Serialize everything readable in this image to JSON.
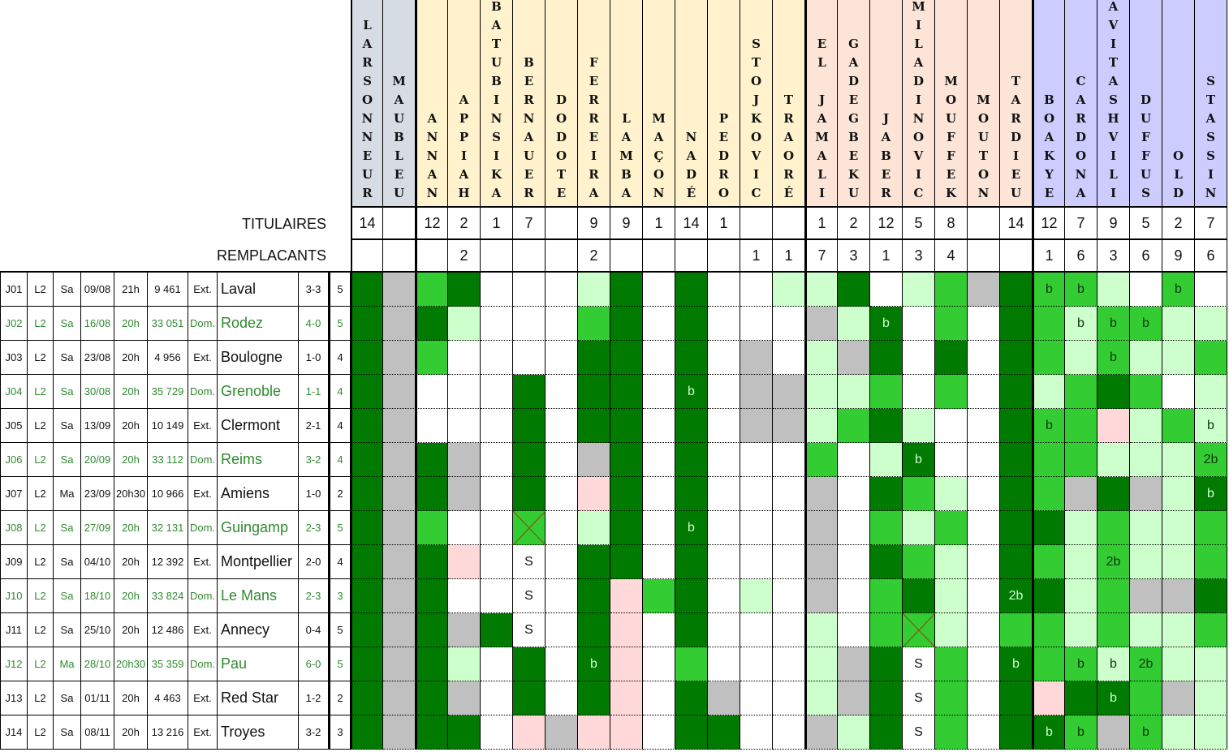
{
  "colors": {
    "D": "#007a00",
    "M": "#33cc33",
    "L": "#ccffcc",
    "W": "#ffffff",
    "G": "#c0c0c0",
    "P": "#ffd9d9",
    "X": "#33cc33"
  },
  "group_colors": [
    "#d6dce4",
    "#fff2cc",
    "#fce4d6",
    "#ccccff"
  ],
  "labels": {
    "titulaires": "TITULAIRES",
    "remplacants": "REMPLACANTS"
  },
  "players": [
    {
      "name": "LARSONNEUR",
      "group": 0,
      "tit": "14",
      "rem": ""
    },
    {
      "name": "MAUBLEU",
      "group": 0,
      "tit": "",
      "rem": ""
    },
    {
      "name": "ANNAN",
      "group": 1,
      "tit": "12",
      "rem": ""
    },
    {
      "name": "APPIAH",
      "group": 1,
      "tit": "2",
      "rem": "2"
    },
    {
      "name": "BATUBINSIKA",
      "group": 1,
      "tit": "1",
      "rem": ""
    },
    {
      "name": "BERNAUER",
      "group": 1,
      "tit": "7",
      "rem": ""
    },
    {
      "name": "DODOTE",
      "group": 1,
      "tit": "",
      "rem": ""
    },
    {
      "name": "FERREIRA",
      "group": 1,
      "tit": "9",
      "rem": "2"
    },
    {
      "name": "LAMBA",
      "group": 1,
      "tit": "9",
      "rem": ""
    },
    {
      "name": "MAÇON",
      "group": 1,
      "tit": "1",
      "rem": ""
    },
    {
      "name": "NADÉ",
      "group": 1,
      "tit": "14",
      "rem": ""
    },
    {
      "name": "PEDRO",
      "group": 1,
      "tit": "1",
      "rem": ""
    },
    {
      "name": "STOJKOVIC",
      "group": 1,
      "tit": "",
      "rem": "1"
    },
    {
      "name": "TRAORÉ",
      "group": 1,
      "tit": "",
      "rem": "1"
    },
    {
      "name": "EL JAMALI",
      "group": 2,
      "tit": "1",
      "rem": "7"
    },
    {
      "name": "GADEGBEKU",
      "group": 2,
      "tit": "2",
      "rem": "3"
    },
    {
      "name": "JABER",
      "group": 2,
      "tit": "12",
      "rem": "1"
    },
    {
      "name": "MILADINOVIC",
      "group": 2,
      "tit": "5",
      "rem": "3"
    },
    {
      "name": "MOUFFEK",
      "group": 2,
      "tit": "8",
      "rem": "4"
    },
    {
      "name": "MOUTON",
      "group": 2,
      "tit": "",
      "rem": ""
    },
    {
      "name": "TARDIEU",
      "group": 2,
      "tit": "14",
      "rem": ""
    },
    {
      "name": "BOAKYE",
      "group": 3,
      "tit": "12",
      "rem": "1"
    },
    {
      "name": "CARDONA",
      "group": 3,
      "tit": "7",
      "rem": "6"
    },
    {
      "name": "DAVITASHVILI",
      "group": 3,
      "tit": "9",
      "rem": "3"
    },
    {
      "name": "DUFFUS",
      "group": 3,
      "tit": "5",
      "rem": "6"
    },
    {
      "name": "OLD",
      "group": 3,
      "tit": "2",
      "rem": "9"
    },
    {
      "name": "STASSIN",
      "group": 3,
      "tit": "7",
      "rem": "6"
    }
  ],
  "matches": [
    {
      "j": "J01",
      "comp": "L2",
      "day": "Sa",
      "date": "09/08",
      "time": "21h",
      "att": "9 461",
      "venue": "Ext.",
      "opp": "Laval",
      "score": "3-3",
      "n": "5",
      "home": false,
      "cells": [
        "D",
        "G",
        "M",
        "D",
        "W",
        "W",
        "W",
        "L",
        "D",
        "W",
        "D",
        "W",
        "W",
        "L",
        "L",
        "D",
        "W",
        "L",
        "M",
        "G",
        "D",
        "M:b",
        "M:b",
        "L",
        "W",
        "M:b",
        "W"
      ]
    },
    {
      "j": "J02",
      "comp": "L2",
      "day": "Sa",
      "date": "16/08",
      "time": "20h",
      "att": "33 051",
      "venue": "Dom.",
      "opp": "Rodez",
      "score": "4-0",
      "n": "5",
      "home": true,
      "cells": [
        "D",
        "G",
        "D",
        "L",
        "W",
        "W",
        "W",
        "M",
        "D",
        "W",
        "D",
        "W",
        "W",
        "W",
        "G",
        "L",
        "D:b",
        "W",
        "M",
        "W",
        "D",
        "M",
        "L:b",
        "M:b",
        "M:b",
        "L",
        "L"
      ]
    },
    {
      "j": "J03",
      "comp": "L2",
      "day": "Sa",
      "date": "23/08",
      "time": "20h",
      "att": "4 956",
      "venue": "Ext.",
      "opp": "Boulogne",
      "score": "1-0",
      "n": "4",
      "home": false,
      "cells": [
        "D",
        "G",
        "M",
        "W",
        "W",
        "W",
        "W",
        "D",
        "D",
        "W",
        "D",
        "W",
        "G",
        "W",
        "L",
        "G",
        "D",
        "W",
        "D",
        "W",
        "D",
        "M",
        "L",
        "M:b",
        "L",
        "L",
        "M"
      ]
    },
    {
      "j": "J04",
      "comp": "L2",
      "day": "Sa",
      "date": "30/08",
      "time": "20h",
      "att": "35 729",
      "venue": "Dom.",
      "opp": "Grenoble",
      "score": "1-1",
      "n": "4",
      "home": true,
      "cells": [
        "D",
        "G",
        "W",
        "W",
        "W",
        "D",
        "W",
        "D",
        "D",
        "W",
        "D:b",
        "W",
        "G",
        "G",
        "L",
        "L",
        "M",
        "W",
        "M",
        "W",
        "D",
        "L",
        "M",
        "D",
        "M",
        "W",
        "L"
      ]
    },
    {
      "j": "J05",
      "comp": "L2",
      "day": "Sa",
      "date": "13/09",
      "time": "20h",
      "att": "10 149",
      "venue": "Ext.",
      "opp": "Clermont",
      "score": "2-1",
      "n": "4",
      "home": false,
      "cells": [
        "D",
        "G",
        "W",
        "W",
        "W",
        "D",
        "W",
        "D",
        "D",
        "W",
        "D",
        "W",
        "G",
        "G",
        "L",
        "M",
        "D",
        "L",
        "W",
        "W",
        "D",
        "M:b",
        "M",
        "P",
        "L",
        "M",
        "L:b"
      ]
    },
    {
      "j": "J06",
      "comp": "L2",
      "day": "Sa",
      "date": "20/09",
      "time": "20h",
      "att": "33 112",
      "venue": "Dom.",
      "opp": "Reims",
      "score": "3-2",
      "n": "4",
      "home": true,
      "cells": [
        "D",
        "G",
        "D",
        "G",
        "W",
        "D",
        "W",
        "G",
        "D",
        "W",
        "D",
        "W",
        "W",
        "W",
        "M",
        "W",
        "L",
        "D:b",
        "W",
        "W",
        "D",
        "M",
        "M",
        "L",
        "L",
        "L",
        "M:2b"
      ]
    },
    {
      "j": "J07",
      "comp": "L2",
      "day": "Ma",
      "date": "23/09",
      "time": "20h30",
      "att": "10 966",
      "venue": "Ext.",
      "opp": "Amiens",
      "score": "1-0",
      "n": "2",
      "home": false,
      "cells": [
        "D",
        "G",
        "D",
        "G",
        "W",
        "D",
        "W",
        "P",
        "D",
        "W",
        "D",
        "W",
        "W",
        "W",
        "G",
        "W",
        "D",
        "M",
        "L",
        "W",
        "D",
        "M",
        "G",
        "D",
        "G",
        "L",
        "D:b"
      ]
    },
    {
      "j": "J08",
      "comp": "L2",
      "day": "Sa",
      "date": "27/09",
      "time": "20h",
      "att": "32 131",
      "venue": "Dom.",
      "opp": "Guingamp",
      "score": "2-3",
      "n": "5",
      "home": true,
      "cells": [
        "D",
        "G",
        "M",
        "W",
        "W",
        "X",
        "W",
        "L",
        "D",
        "W",
        "D:b",
        "W",
        "W",
        "W",
        "G",
        "W",
        "M",
        "L",
        "M",
        "W",
        "D",
        "D",
        "L",
        "M",
        "L",
        "L",
        "M"
      ]
    },
    {
      "j": "J09",
      "comp": "L2",
      "day": "Sa",
      "date": "04/10",
      "time": "20h",
      "att": "12 392",
      "venue": "Ext.",
      "opp": "Montpellier",
      "score": "2-0",
      "n": "4",
      "home": false,
      "cells": [
        "D",
        "G",
        "D",
        "P",
        "W",
        "W:S",
        "W",
        "D",
        "D",
        "W",
        "D",
        "W",
        "W",
        "W",
        "G",
        "W",
        "D",
        "M",
        "L",
        "W",
        "D",
        "M",
        "L",
        "M:2b",
        "L",
        "L",
        "M"
      ]
    },
    {
      "j": "J10",
      "comp": "L2",
      "day": "Sa",
      "date": "18/10",
      "time": "20h",
      "att": "33 824",
      "venue": "Dom.",
      "opp": "Le Mans",
      "score": "2-3",
      "n": "3",
      "home": true,
      "cells": [
        "D",
        "G",
        "D",
        "W",
        "W",
        "W:S",
        "W",
        "D",
        "P",
        "M",
        "D",
        "W",
        "L",
        "W",
        "G",
        "W",
        "M",
        "D",
        "L",
        "W",
        "D:2b",
        "D",
        "L",
        "M",
        "G",
        "G",
        "D"
      ]
    },
    {
      "j": "J11",
      "comp": "L2",
      "day": "Sa",
      "date": "25/10",
      "time": "20h",
      "att": "12 486",
      "venue": "Ext.",
      "opp": "Annecy",
      "score": "0-4",
      "n": "5",
      "home": false,
      "cells": [
        "D",
        "G",
        "D",
        "G",
        "D",
        "W:S",
        "W",
        "D",
        "P",
        "W",
        "D",
        "W",
        "W",
        "W",
        "L",
        "W",
        "M",
        "X",
        "L",
        "W",
        "M",
        "M",
        "L",
        "M",
        "L",
        "L",
        "M"
      ]
    },
    {
      "j": "J12",
      "comp": "L2",
      "day": "Ma",
      "date": "28/10",
      "time": "20h30",
      "att": "35 359",
      "venue": "Dom.",
      "opp": "Pau",
      "score": "6-0",
      "n": "5",
      "home": true,
      "cells": [
        "D",
        "G",
        "D",
        "L",
        "W",
        "D",
        "W",
        "D:b",
        "P",
        "W",
        "M",
        "W",
        "W",
        "W",
        "L",
        "G",
        "D",
        "W:S",
        "M",
        "W",
        "D:b",
        "M",
        "M:b",
        "L:b",
        "M:2b",
        "L",
        "L"
      ]
    },
    {
      "j": "J13",
      "comp": "L2",
      "day": "Sa",
      "date": "01/11",
      "time": "20h",
      "att": "4 463",
      "venue": "Ext.",
      "opp": "Red Star",
      "score": "1-2",
      "n": "2",
      "home": false,
      "cells": [
        "D",
        "G",
        "D",
        "G",
        "W",
        "D",
        "W",
        "D",
        "P",
        "W",
        "D",
        "G",
        "W",
        "W",
        "L",
        "G",
        "D",
        "W:S",
        "M",
        "W",
        "D",
        "P",
        "D",
        "D:b",
        "M",
        "G",
        "L"
      ]
    },
    {
      "j": "J14",
      "comp": "L2",
      "day": "Sa",
      "date": "08/11",
      "time": "20h",
      "att": "13 216",
      "venue": "Ext.",
      "opp": "Troyes",
      "score": "3-2",
      "n": "3",
      "home": false,
      "cells": [
        "D",
        "G",
        "D",
        "D",
        "W",
        "P",
        "G",
        "P",
        "P",
        "W",
        "D",
        "D",
        "W",
        "W",
        "G",
        "L",
        "D",
        "W:S",
        "M",
        "W",
        "D",
        "D:b",
        "M:b",
        "G",
        "M:b",
        "L",
        "L"
      ]
    }
  ]
}
